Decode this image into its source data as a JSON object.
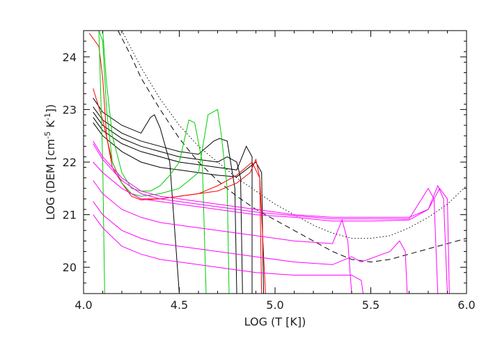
{
  "chart_data": {
    "type": "line",
    "xlabel": "LOG (T [K])",
    "ylabel": {
      "prefix": "LOG (DEM [cm",
      "exp1": "-5",
      "mid": " K",
      "exp2": "-1",
      "suffix": "])"
    },
    "xlim": [
      4.0,
      6.0
    ],
    "ylim": [
      19.5,
      24.5
    ],
    "xticks": [
      4.0,
      4.5,
      5.0,
      5.5,
      6.0
    ],
    "xtick_labels": [
      "4.0",
      "4.5",
      "5.0",
      "5.5",
      "6.0"
    ],
    "yticks": [
      20,
      21,
      22,
      23,
      24
    ],
    "ytick_labels": [
      "20",
      "21",
      "22",
      "23",
      "24"
    ],
    "grid": false,
    "series": [
      {
        "color": "#000000",
        "style": "dotted",
        "points": [
          [
            4.2,
            24.5
          ],
          [
            4.3,
            23.8
          ],
          [
            4.4,
            23.2
          ],
          [
            4.5,
            22.7
          ],
          [
            4.6,
            22.3
          ],
          [
            4.7,
            22.0
          ],
          [
            4.8,
            21.7
          ],
          [
            4.9,
            21.45
          ],
          [
            5.0,
            21.2
          ],
          [
            5.1,
            21.0
          ],
          [
            5.2,
            20.8
          ],
          [
            5.3,
            20.65
          ],
          [
            5.4,
            20.55
          ],
          [
            5.5,
            20.55
          ],
          [
            5.6,
            20.6
          ],
          [
            5.7,
            20.75
          ],
          [
            5.8,
            20.95
          ],
          [
            5.9,
            21.2
          ],
          [
            6.0,
            21.55
          ]
        ]
      },
      {
        "color": "#000000",
        "style": "dashed",
        "points": [
          [
            4.18,
            24.5
          ],
          [
            4.25,
            24.0
          ],
          [
            4.3,
            23.6
          ],
          [
            4.4,
            23.0
          ],
          [
            4.5,
            22.45
          ],
          [
            4.6,
            22.0
          ],
          [
            4.7,
            21.65
          ],
          [
            4.8,
            21.35
          ],
          [
            4.9,
            21.1
          ],
          [
            5.0,
            20.9
          ],
          [
            5.1,
            20.7
          ],
          [
            5.2,
            20.5
          ],
          [
            5.3,
            20.3
          ],
          [
            5.4,
            20.15
          ],
          [
            5.5,
            20.1
          ],
          [
            5.6,
            20.15
          ],
          [
            5.7,
            20.25
          ],
          [
            5.8,
            20.35
          ],
          [
            5.9,
            20.45
          ],
          [
            6.0,
            20.55
          ]
        ]
      },
      {
        "color": "#000000",
        "style": "solid",
        "points": [
          [
            4.05,
            23.22
          ],
          [
            4.1,
            22.95
          ],
          [
            4.2,
            22.7
          ],
          [
            4.3,
            22.55
          ],
          [
            4.35,
            22.85
          ],
          [
            4.37,
            22.9
          ],
          [
            4.4,
            22.65
          ],
          [
            4.45,
            22.0
          ],
          [
            4.5,
            19.5
          ]
        ]
      },
      {
        "color": "#000000",
        "style": "solid",
        "points": [
          [
            4.05,
            23.05
          ],
          [
            4.1,
            22.8
          ],
          [
            4.2,
            22.55
          ],
          [
            4.3,
            22.4
          ],
          [
            4.4,
            22.3
          ],
          [
            4.5,
            22.2
          ],
          [
            4.6,
            22.15
          ],
          [
            4.68,
            22.4
          ],
          [
            4.71,
            22.45
          ],
          [
            4.75,
            22.4
          ],
          [
            4.79,
            21.5
          ],
          [
            4.8,
            19.5
          ]
        ]
      },
      {
        "color": "#000000",
        "style": "solid",
        "points": [
          [
            4.05,
            22.95
          ],
          [
            4.1,
            22.7
          ],
          [
            4.2,
            22.45
          ],
          [
            4.3,
            22.3
          ],
          [
            4.4,
            22.2
          ],
          [
            4.5,
            22.1
          ],
          [
            4.6,
            22.05
          ],
          [
            4.7,
            22.0
          ],
          [
            4.75,
            22.1
          ],
          [
            4.8,
            22.0
          ],
          [
            4.82,
            21.7
          ],
          [
            4.83,
            19.5
          ]
        ]
      },
      {
        "color": "#000000",
        "style": "solid",
        "points": [
          [
            4.05,
            22.85
          ],
          [
            4.1,
            22.6
          ],
          [
            4.2,
            22.35
          ],
          [
            4.3,
            22.2
          ],
          [
            4.4,
            22.1
          ],
          [
            4.5,
            22.0
          ],
          [
            4.6,
            21.95
          ],
          [
            4.7,
            21.9
          ],
          [
            4.8,
            21.85
          ],
          [
            4.85,
            22.3
          ],
          [
            4.88,
            22.1
          ],
          [
            4.88,
            19.5
          ]
        ]
      },
      {
        "color": "#000000",
        "style": "solid",
        "points": [
          [
            4.05,
            22.75
          ],
          [
            4.1,
            22.5
          ],
          [
            4.2,
            22.2
          ],
          [
            4.3,
            22.0
          ],
          [
            4.4,
            21.9
          ],
          [
            4.5,
            21.85
          ],
          [
            4.6,
            21.8
          ],
          [
            4.7,
            21.75
          ],
          [
            4.8,
            21.72
          ],
          [
            4.9,
            22.0
          ],
          [
            4.93,
            21.8
          ],
          [
            4.94,
            19.5
          ]
        ]
      },
      {
        "color": "#ff0000",
        "style": "solid",
        "points": [
          [
            4.03,
            24.45
          ],
          [
            4.08,
            24.2
          ],
          [
            4.1,
            23.6
          ],
          [
            4.12,
            22.5
          ],
          [
            4.15,
            21.9
          ],
          [
            4.2,
            21.6
          ],
          [
            4.25,
            21.4
          ],
          [
            4.3,
            21.3
          ],
          [
            4.4,
            21.3
          ],
          [
            4.5,
            21.35
          ],
          [
            4.6,
            21.4
          ],
          [
            4.7,
            21.45
          ],
          [
            4.8,
            21.6
          ],
          [
            4.87,
            21.8
          ],
          [
            4.9,
            22.05
          ],
          [
            4.92,
            21.7
          ],
          [
            4.93,
            19.5
          ]
        ]
      },
      {
        "color": "#ff0000",
        "style": "solid",
        "points": [
          [
            4.05,
            23.4
          ],
          [
            4.1,
            22.8
          ],
          [
            4.15,
            22.0
          ],
          [
            4.2,
            21.6
          ],
          [
            4.25,
            21.35
          ],
          [
            4.3,
            21.28
          ],
          [
            4.4,
            21.3
          ],
          [
            4.5,
            21.35
          ],
          [
            4.6,
            21.4
          ],
          [
            4.7,
            21.55
          ],
          [
            4.8,
            21.75
          ],
          [
            4.88,
            22.0
          ],
          [
            4.92,
            21.7
          ],
          [
            4.95,
            19.5
          ]
        ]
      },
      {
        "color": "#00cc00",
        "style": "solid",
        "points": [
          [
            4.1,
            24.5
          ],
          [
            4.12,
            23.5
          ],
          [
            4.15,
            22.5
          ],
          [
            4.2,
            21.8
          ],
          [
            4.25,
            21.5
          ],
          [
            4.3,
            21.45
          ],
          [
            4.35,
            21.45
          ],
          [
            4.4,
            21.55
          ],
          [
            4.45,
            21.75
          ],
          [
            4.5,
            22.0
          ],
          [
            4.55,
            22.8
          ],
          [
            4.58,
            22.75
          ],
          [
            4.62,
            22.0
          ],
          [
            4.64,
            19.5
          ]
        ]
      },
      {
        "color": "#00cc00",
        "style": "solid",
        "points": [
          [
            4.08,
            24.5
          ],
          [
            4.1,
            24.3
          ],
          [
            4.12,
            23.0
          ],
          [
            4.15,
            22.0
          ],
          [
            4.2,
            21.6
          ],
          [
            4.25,
            21.4
          ],
          [
            4.3,
            21.35
          ],
          [
            4.4,
            21.4
          ],
          [
            4.5,
            21.5
          ],
          [
            4.6,
            21.8
          ],
          [
            4.65,
            22.9
          ],
          [
            4.7,
            23.0
          ],
          [
            4.72,
            22.5
          ],
          [
            4.75,
            21.5
          ],
          [
            4.76,
            19.5
          ]
        ]
      },
      {
        "color": "#00cc00",
        "style": "solid",
        "points": [
          [
            4.08,
            24.5
          ],
          [
            4.1,
            22.0
          ],
          [
            4.11,
            19.5
          ]
        ]
      },
      {
        "color": "#ff00ff",
        "style": "solid",
        "points": [
          [
            4.05,
            22.4
          ],
          [
            4.1,
            22.1
          ],
          [
            4.2,
            21.7
          ],
          [
            4.3,
            21.45
          ],
          [
            4.4,
            21.35
          ],
          [
            4.5,
            21.3
          ],
          [
            4.7,
            21.2
          ],
          [
            4.9,
            21.1
          ],
          [
            5.1,
            21.0
          ],
          [
            5.3,
            20.95
          ],
          [
            5.5,
            20.95
          ],
          [
            5.7,
            20.95
          ],
          [
            5.8,
            21.1
          ],
          [
            5.85,
            21.55
          ],
          [
            5.88,
            21.3
          ],
          [
            5.9,
            19.5
          ]
        ]
      },
      {
        "color": "#ff00ff",
        "style": "solid",
        "points": [
          [
            4.05,
            22.35
          ],
          [
            4.1,
            22.05
          ],
          [
            4.2,
            21.65
          ],
          [
            4.3,
            21.4
          ],
          [
            4.4,
            21.3
          ],
          [
            4.5,
            21.25
          ],
          [
            4.7,
            21.15
          ],
          [
            4.9,
            21.05
          ],
          [
            5.1,
            20.98
          ],
          [
            5.3,
            20.92
          ],
          [
            5.5,
            20.92
          ],
          [
            5.7,
            20.92
          ],
          [
            5.8,
            21.5
          ],
          [
            5.83,
            21.3
          ],
          [
            5.85,
            19.5
          ]
        ]
      },
      {
        "color": "#ff00ff",
        "style": "solid",
        "points": [
          [
            4.05,
            22.0
          ],
          [
            4.1,
            21.8
          ],
          [
            4.2,
            21.5
          ],
          [
            4.3,
            21.3
          ],
          [
            4.4,
            21.25
          ],
          [
            4.5,
            21.2
          ],
          [
            4.7,
            21.1
          ],
          [
            4.9,
            21.0
          ],
          [
            5.1,
            20.95
          ],
          [
            5.3,
            20.88
          ],
          [
            5.5,
            20.88
          ],
          [
            5.7,
            20.9
          ],
          [
            5.8,
            21.1
          ],
          [
            5.86,
            21.5
          ],
          [
            5.9,
            21.3
          ],
          [
            5.91,
            19.5
          ]
        ]
      },
      {
        "color": "#ff00ff",
        "style": "solid",
        "points": [
          [
            4.05,
            21.65
          ],
          [
            4.1,
            21.4
          ],
          [
            4.2,
            21.1
          ],
          [
            4.3,
            20.95
          ],
          [
            4.4,
            20.85
          ],
          [
            4.5,
            20.8
          ],
          [
            4.7,
            20.7
          ],
          [
            4.9,
            20.6
          ],
          [
            5.1,
            20.5
          ],
          [
            5.3,
            20.45
          ],
          [
            5.35,
            20.9
          ],
          [
            5.38,
            20.5
          ],
          [
            5.4,
            19.5
          ]
        ]
      },
      {
        "color": "#ff00ff",
        "style": "solid",
        "points": [
          [
            4.05,
            21.25
          ],
          [
            4.1,
            21.0
          ],
          [
            4.2,
            20.7
          ],
          [
            4.3,
            20.55
          ],
          [
            4.4,
            20.45
          ],
          [
            4.5,
            20.4
          ],
          [
            4.7,
            20.3
          ],
          [
            4.9,
            20.2
          ],
          [
            5.1,
            20.1
          ],
          [
            5.3,
            20.05
          ],
          [
            5.4,
            20.2
          ],
          [
            5.45,
            20.1
          ],
          [
            5.6,
            20.3
          ],
          [
            5.65,
            20.5
          ],
          [
            5.68,
            20.3
          ],
          [
            5.69,
            19.5
          ]
        ]
      },
      {
        "color": "#ff00ff",
        "style": "solid",
        "points": [
          [
            4.05,
            21.0
          ],
          [
            4.1,
            20.75
          ],
          [
            4.2,
            20.4
          ],
          [
            4.3,
            20.25
          ],
          [
            4.4,
            20.15
          ],
          [
            4.5,
            20.1
          ],
          [
            4.7,
            20.0
          ],
          [
            4.9,
            19.9
          ],
          [
            5.1,
            19.85
          ],
          [
            5.3,
            19.85
          ],
          [
            5.4,
            19.85
          ],
          [
            5.45,
            19.75
          ],
          [
            5.46,
            19.5
          ]
        ]
      }
    ]
  }
}
